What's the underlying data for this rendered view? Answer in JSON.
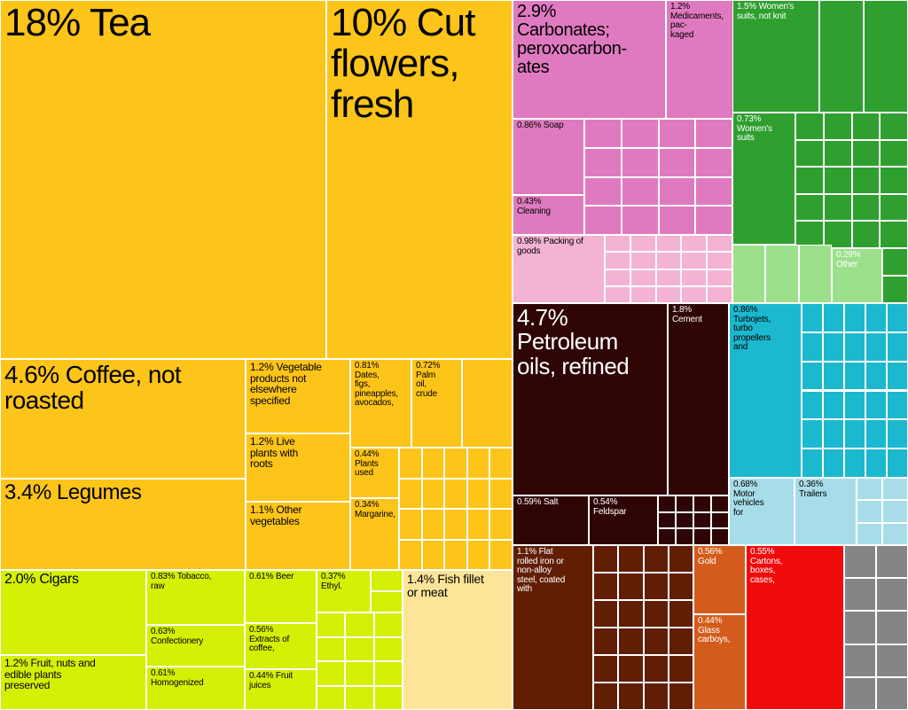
{
  "palette": {
    "agri": "#fdc41a",
    "food": "#d3f005",
    "fish": "#fce498",
    "chem": "#e07ac0",
    "plastic": "#f4b3d3",
    "textile": "#2f9f30",
    "footwear": "#9ce08c",
    "mineral": "#2e0404",
    "machine": "#1cb8cf",
    "transport": "#a7dde9",
    "metal": "#611e04",
    "stone": "#d35c1c",
    "instrument": "#f00a0c",
    "misc": "#858585"
  },
  "chart_data": {
    "type": "treemap",
    "title": "",
    "unit": "% of exports",
    "labeled_items": [
      {
        "id": "tea",
        "label": "18% Tea",
        "value": 18,
        "group": "agri"
      },
      {
        "id": "cutflowers",
        "label": "10% Cut\nflowers,\nfresh",
        "value": 10,
        "group": "agri"
      },
      {
        "id": "coffee",
        "label": "4.6% Coffee, not\nroasted",
        "value": 4.6,
        "group": "agri"
      },
      {
        "id": "legumes",
        "label": "3.4% Legumes",
        "value": 3.4,
        "group": "agri"
      },
      {
        "id": "vegproducts",
        "label": "1.2% Vegetable\nproducts not\nelsewhere\nspecified",
        "value": 1.2,
        "group": "agri"
      },
      {
        "id": "liveplants",
        "label": "1.2% Live\nplants with\nroots",
        "value": 1.2,
        "group": "agri"
      },
      {
        "id": "othervegetables",
        "label": "1.1% Other\nvegetables",
        "value": 1.1,
        "group": "agri"
      },
      {
        "id": "dates",
        "label": "0.81%\nDates,\nfigs,\npineapples,\navocados,",
        "value": 0.81,
        "group": "agri"
      },
      {
        "id": "palmoil",
        "label": "0.72%\nPalm\noil,\ncrude",
        "value": 0.72,
        "group": "agri"
      },
      {
        "id": "plantsused",
        "label": "0.44%\nPlants\nused",
        "value": 0.44,
        "group": "agri"
      },
      {
        "id": "margarine",
        "label": "0.34%\nMargarine,",
        "value": 0.34,
        "group": "agri"
      },
      {
        "id": "cigars",
        "label": "2.0% Cigars",
        "value": 2.0,
        "group": "food"
      },
      {
        "id": "fruitnuts",
        "label": "1.2% Fruit, nuts and\nedible plants\npreserved",
        "value": 1.2,
        "group": "food"
      },
      {
        "id": "tobacco",
        "label": "0.83% Tobacco,\nraw",
        "value": 0.83,
        "group": "food"
      },
      {
        "id": "confectionery",
        "label": "0.63%\nConfectionery",
        "value": 0.63,
        "group": "food"
      },
      {
        "id": "homogenized",
        "label": "0.61%\nHomogenized",
        "value": 0.61,
        "group": "food"
      },
      {
        "id": "beer",
        "label": "0.61% Beer",
        "value": 0.61,
        "group": "food"
      },
      {
        "id": "coffeeextracts",
        "label": "0.56%\nExtracts of\ncoffee,",
        "value": 0.56,
        "group": "food"
      },
      {
        "id": "fruitjuices",
        "label": "0.44% Fruit\njuices",
        "value": 0.44,
        "group": "food"
      },
      {
        "id": "ethyl",
        "label": "0.37%\nEthyl.",
        "value": 0.37,
        "group": "food"
      },
      {
        "id": "fishfillet",
        "label": "1.4% Fish fillet\nor meat",
        "value": 1.4,
        "group": "fish"
      },
      {
        "id": "carbonates",
        "label": "2.9%\nCarbonates;\nperoxocarbon-\nates",
        "value": 2.9,
        "group": "chem"
      },
      {
        "id": "medicaments",
        "label": "1.2%\nMedicaments,\npac-\nkaged",
        "value": 1.2,
        "group": "chem"
      },
      {
        "id": "soap",
        "label": "0.86% Soap",
        "value": 0.86,
        "group": "chem"
      },
      {
        "id": "cleaning",
        "label": "0.43%\nCleaning",
        "value": 0.43,
        "group": "chem"
      },
      {
        "id": "packing",
        "label": "0.98% Packing of\ngoods",
        "value": 0.98,
        "group": "plastic"
      },
      {
        "id": "womenssuitsnotknit",
        "label": "1.5% Women's\nsuits, not knit",
        "value": 1.5,
        "group": "textile"
      },
      {
        "id": "womenssuits",
        "label": "0.73%\nWomen's\nsuits",
        "value": 0.73,
        "group": "textile"
      },
      {
        "id": "otherfootwear",
        "label": "0.29%\nOther",
        "value": 0.29,
        "group": "footwear"
      },
      {
        "id": "petroleum",
        "label": "4.7%\nPetroleum\noils, refined",
        "value": 4.7,
        "group": "mineral"
      },
      {
        "id": "cement",
        "label": "1.8%\nCement",
        "value": 1.8,
        "group": "mineral"
      },
      {
        "id": "salt",
        "label": "0.59% Salt",
        "value": 0.59,
        "group": "mineral"
      },
      {
        "id": "feldspar",
        "label": "0.54%\nFeldspar",
        "value": 0.54,
        "group": "mineral"
      },
      {
        "id": "turbojets",
        "label": "0.86%\nTurbojets,\nturbo\npropellers\nand",
        "value": 0.86,
        "group": "machine"
      },
      {
        "id": "motorvehicles",
        "label": "0.68%\nMotor\nvehicles\nfor",
        "value": 0.68,
        "group": "transport"
      },
      {
        "id": "trailers",
        "label": "0.36%\nTrailers",
        "value": 0.36,
        "group": "transport"
      },
      {
        "id": "flatrolled",
        "label": "1.1% Flat\nrolled iron or\nnon-alloy\nsteel, coated\nwith",
        "value": 1.1,
        "group": "metal"
      },
      {
        "id": "gold",
        "label": "0.56%\nGold",
        "value": 0.56,
        "group": "stone"
      },
      {
        "id": "glasscarboys",
        "label": "0.44%\nGlass\ncarboys,",
        "value": 0.44,
        "group": "stone"
      },
      {
        "id": "cartons",
        "label": "0.55%\nCartons,\nboxes,\ncases,",
        "value": 0.55,
        "group": "instrument"
      }
    ]
  }
}
